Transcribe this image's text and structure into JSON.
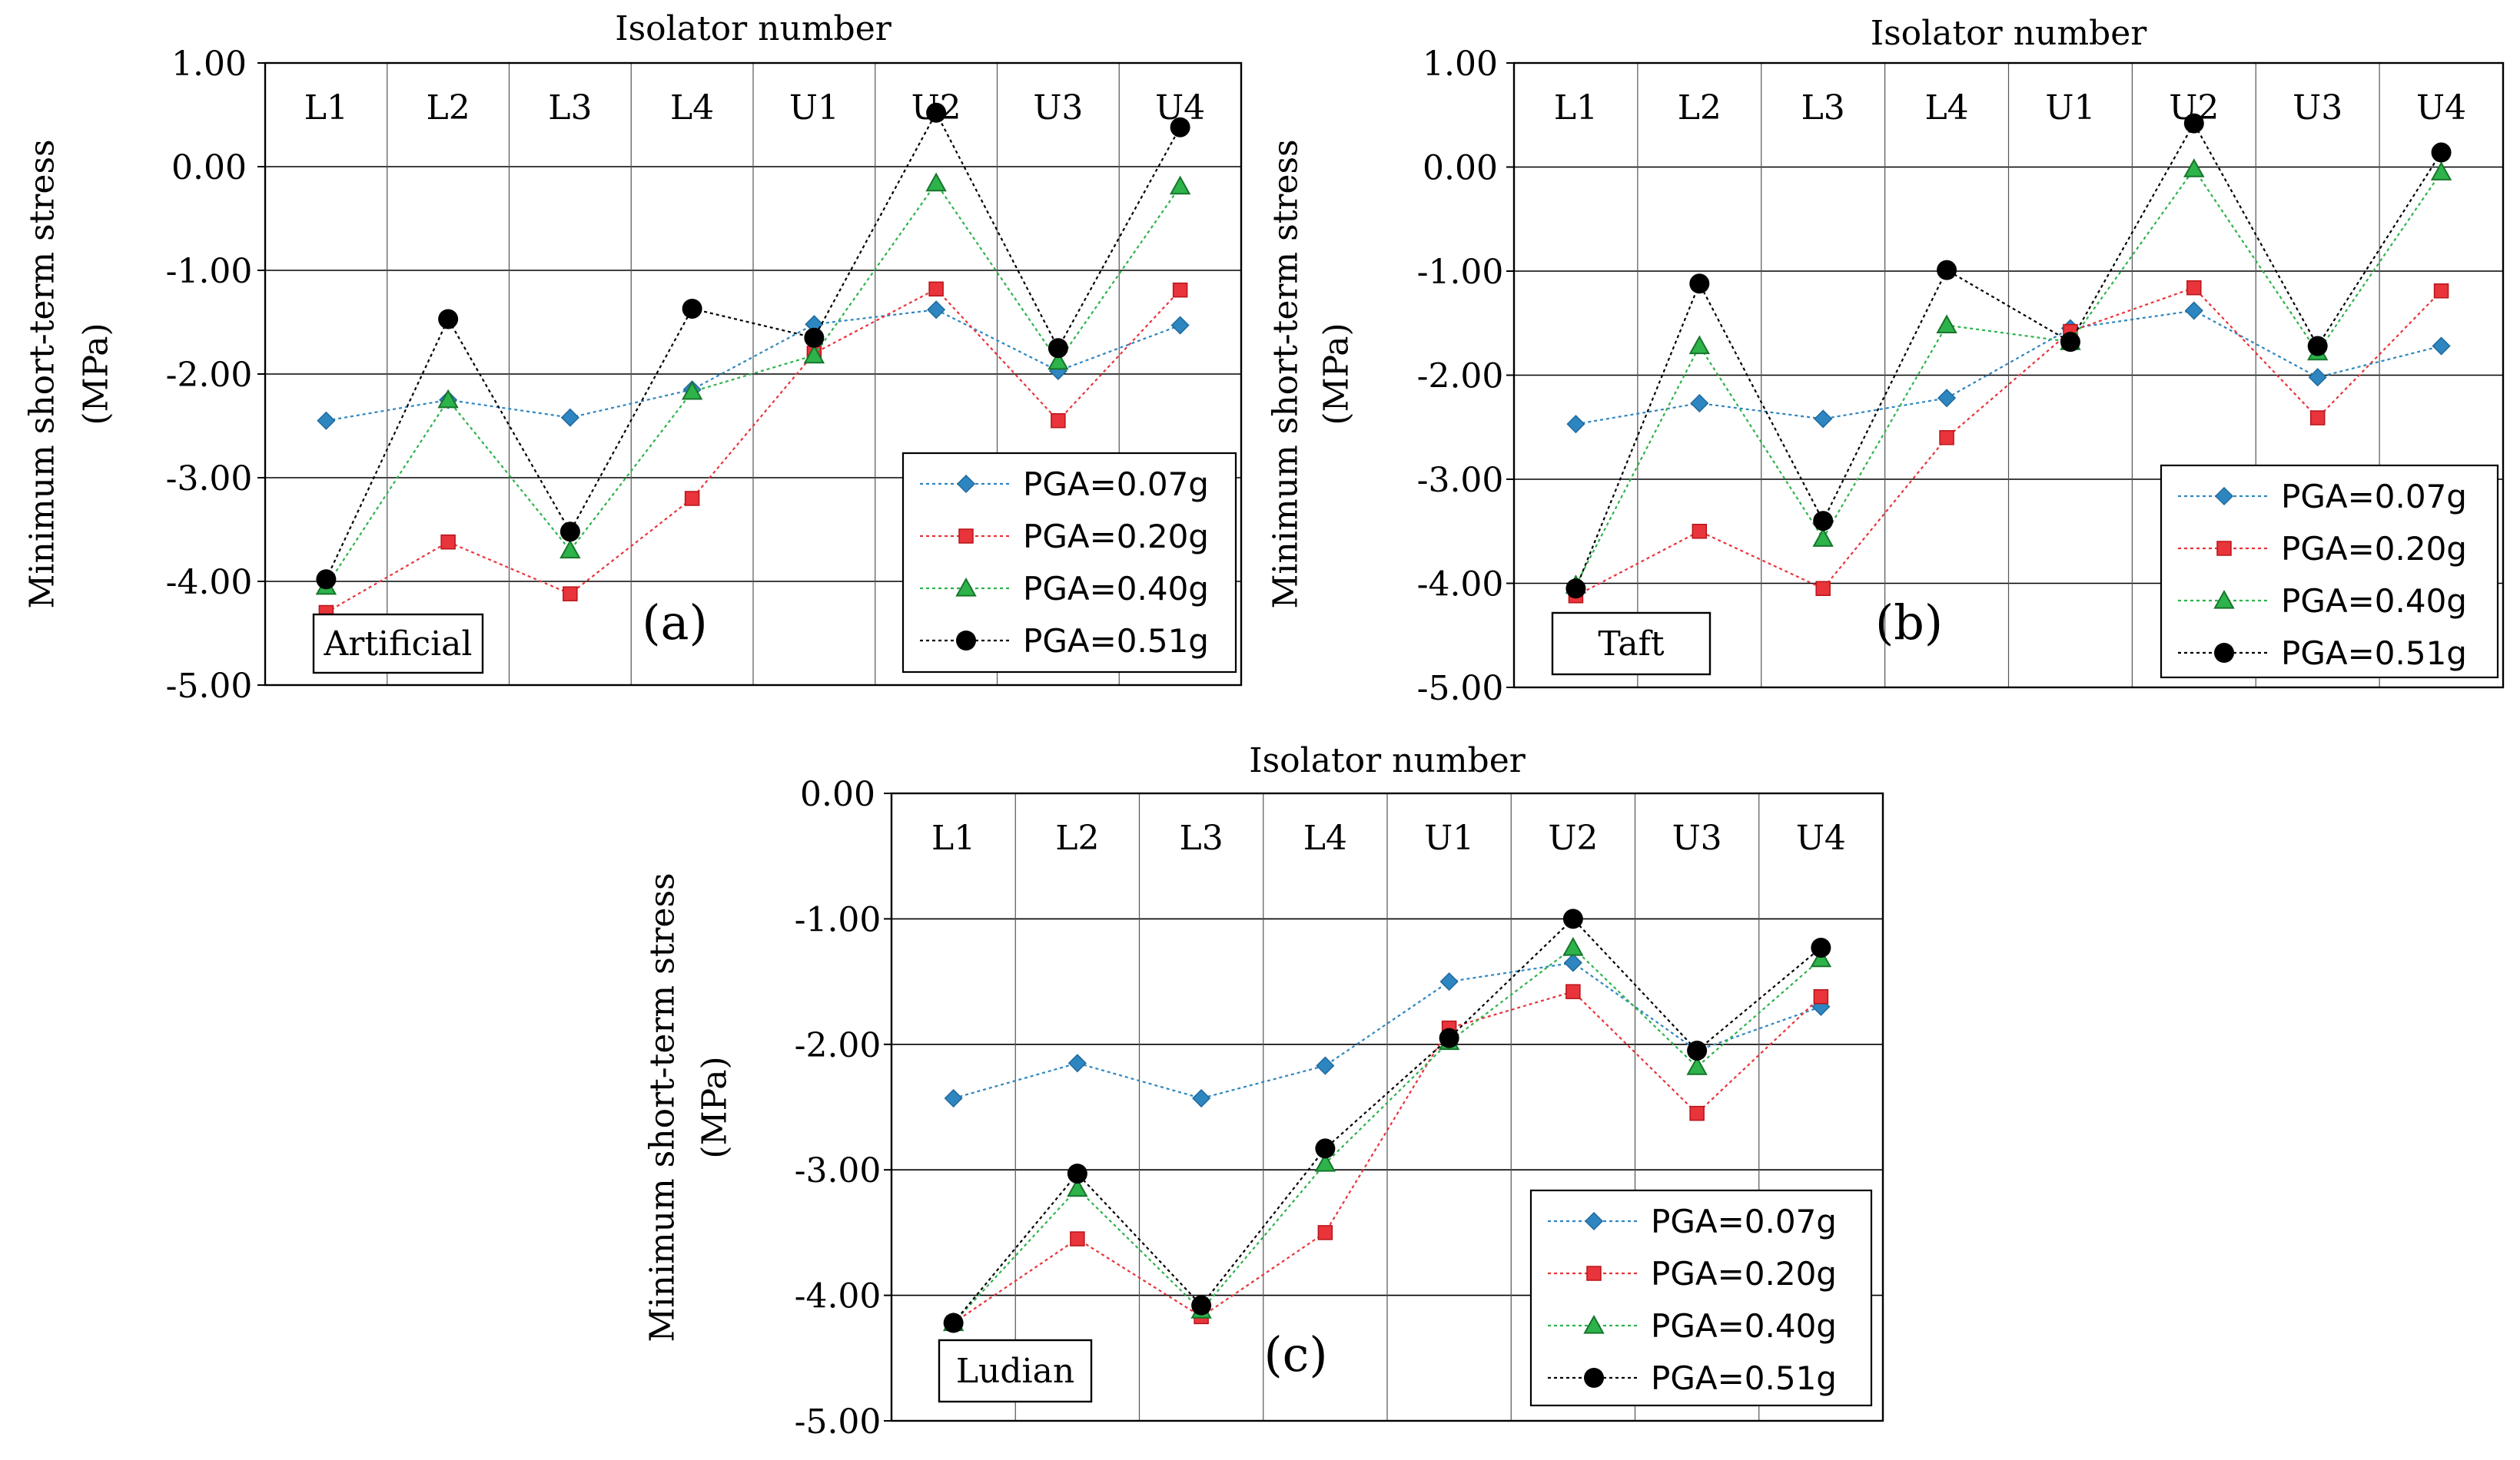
{
  "figure": {
    "colors": {
      "PGA=0.07g": "#2E86C1",
      "PGA=0.20g": "#E8343A",
      "PGA=0.40g": "#2DB34A",
      "PGA=0.51g": "#000000"
    }
  },
  "chart_data": [
    {
      "type": "line",
      "panel_label": "(a)",
      "record_label": "Artificial",
      "xlabel": "Isolator number",
      "ylabel_line1": "Minimum short-term  stress",
      "ylabel_line2": "(MPa)",
      "categories": [
        "L1",
        "L2",
        "L3",
        "L4",
        "U1",
        "U2",
        "U3",
        "U4"
      ],
      "ylim": [
        -5.0,
        1.0
      ],
      "yticks": [
        1.0,
        0.0,
        -1.0,
        -2.0,
        -3.0,
        -4.0,
        -5.0
      ],
      "ytick_labels": [
        "1.00",
        "0.00",
        "-1.00",
        "-2.00",
        "-3.00",
        "-4.00",
        "-5.00"
      ],
      "legend_position": "bottom-right",
      "series": [
        {
          "name": "PGA=0.07g",
          "marker": "diamond",
          "values": [
            -2.45,
            -2.25,
            -2.42,
            -2.15,
            -1.52,
            -1.38,
            -1.97,
            -1.53
          ]
        },
        {
          "name": "PGA=0.20g",
          "marker": "square",
          "values": [
            -4.3,
            -3.62,
            -4.12,
            -3.2,
            -1.8,
            -1.18,
            -2.45,
            -1.19
          ]
        },
        {
          "name": "PGA=0.40g",
          "marker": "triangle",
          "values": [
            -4.05,
            -2.25,
            -3.7,
            -2.17,
            -1.82,
            -0.16,
            -1.88,
            -0.19
          ]
        },
        {
          "name": "PGA=0.51g",
          "marker": "circle",
          "values": [
            -3.98,
            -1.47,
            -3.52,
            -1.37,
            -1.65,
            0.52,
            -1.75,
            0.38
          ]
        }
      ]
    },
    {
      "type": "line",
      "panel_label": "(b)",
      "record_label": "Taft",
      "xlabel": "Isolator number",
      "ylabel_line1": "Minimum short-term  stress",
      "ylabel_line2": "(MPa)",
      "categories": [
        "L1",
        "L2",
        "L3",
        "L4",
        "U1",
        "U2",
        "U3",
        "U4"
      ],
      "ylim": [
        -5.0,
        1.0
      ],
      "yticks": [
        1.0,
        0.0,
        -1.0,
        -2.0,
        -3.0,
        -4.0,
        -5.0
      ],
      "ytick_labels": [
        "1.00",
        "0.00",
        "-1.00",
        "-2.00",
        "-3.00",
        "-4.00",
        "-5.00"
      ],
      "legend_position": "bottom-right",
      "series": [
        {
          "name": "PGA=0.07g",
          "marker": "diamond",
          "values": [
            -2.47,
            -2.27,
            -2.42,
            -2.22,
            -1.55,
            -1.38,
            -2.02,
            -1.72
          ]
        },
        {
          "name": "PGA=0.20g",
          "marker": "square",
          "values": [
            -4.12,
            -3.5,
            -4.05,
            -2.6,
            -1.58,
            -1.16,
            -2.41,
            -1.19
          ]
        },
        {
          "name": "PGA=0.40g",
          "marker": "triangle",
          "values": [
            -4.02,
            -1.72,
            -3.57,
            -1.52,
            -1.68,
            -0.02,
            -1.78,
            -0.05
          ]
        },
        {
          "name": "PGA=0.51g",
          "marker": "circle",
          "values": [
            -4.05,
            -1.12,
            -3.4,
            -0.99,
            -1.68,
            0.42,
            -1.72,
            0.14
          ]
        }
      ]
    },
    {
      "type": "line",
      "panel_label": "(c)",
      "record_label": "Ludian",
      "xlabel": "Isolator number",
      "ylabel_line1": "Minimum short-term  stress",
      "ylabel_line2": "(MPa)",
      "categories": [
        "L1",
        "L2",
        "L3",
        "L4",
        "U1",
        "U2",
        "U3",
        "U4"
      ],
      "ylim": [
        -5.0,
        0.0
      ],
      "yticks": [
        0.0,
        -1.0,
        -2.0,
        -3.0,
        -4.0,
        -5.0
      ],
      "ytick_labels": [
        "0.00",
        "-1.00",
        "-2.00",
        "-3.00",
        "-4.00",
        "-5.00"
      ],
      "legend_position": "bottom-right",
      "series": [
        {
          "name": "PGA=0.07g",
          "marker": "diamond",
          "values": [
            -2.43,
            -2.15,
            -2.43,
            -2.17,
            -1.5,
            -1.35,
            -2.05,
            -1.7
          ]
        },
        {
          "name": "PGA=0.20g",
          "marker": "square",
          "values": [
            -4.22,
            -3.55,
            -4.17,
            -3.5,
            -1.87,
            -1.58,
            -2.55,
            -1.62
          ]
        },
        {
          "name": "PGA=0.40g",
          "marker": "triangle",
          "values": [
            -4.22,
            -3.15,
            -4.12,
            -2.95,
            -1.98,
            -1.23,
            -2.18,
            -1.32
          ]
        },
        {
          "name": "PGA=0.51g",
          "marker": "circle",
          "values": [
            -4.22,
            -3.03,
            -4.08,
            -2.83,
            -1.95,
            -1.0,
            -2.05,
            -1.23
          ]
        }
      ]
    }
  ]
}
